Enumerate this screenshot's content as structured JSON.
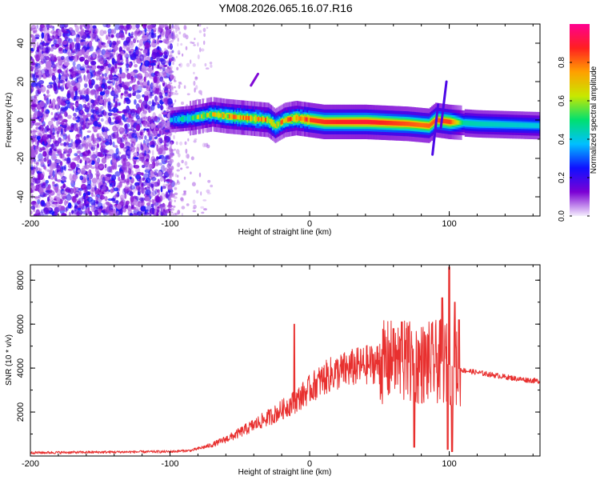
{
  "title": "YM08.2026.065.16.07.R16",
  "chart_data": [
    {
      "type": "heatmap",
      "name": "spectrogram",
      "xlabel": "Height of straight line (km)",
      "ylabel": "Frequency (Hz)",
      "xlim": [
        -200,
        165
      ],
      "ylim": [
        -50,
        50
      ],
      "xticks": [
        -200,
        -100,
        0,
        100
      ],
      "xtick_labels": [
        "-200",
        "-100",
        "0",
        "100"
      ],
      "yticks": [
        -40,
        -20,
        0,
        20,
        40
      ],
      "ytick_labels": [
        "-40",
        "-20",
        "0",
        "20",
        "40"
      ],
      "colorbar": {
        "label": "Normalized spectral amplitude",
        "range": [
          0,
          1
        ],
        "ticks": [
          0.0,
          0.2,
          0.4,
          0.6,
          0.8
        ],
        "tick_labels": [
          "0.0",
          "0.2",
          "0.4",
          "0.6",
          "0.8"
        ],
        "stops": [
          "#f4eefd",
          "#7b00d4",
          "#1010ff",
          "#00c0ff",
          "#00e070",
          "#c8e800",
          "#ffa000",
          "#ff2020",
          "#ff0090"
        ]
      },
      "noise_region_x": [
        -200,
        -100
      ],
      "band_center_hz": [
        {
          "x": -100,
          "f": 0
        },
        {
          "x": -85,
          "f": 1
        },
        {
          "x": -70,
          "f": 3
        },
        {
          "x": -60,
          "f": 2
        },
        {
          "x": -45,
          "f": 1
        },
        {
          "x": -30,
          "f": 0
        },
        {
          "x": -25,
          "f": -3
        },
        {
          "x": -18,
          "f": 0
        },
        {
          "x": -10,
          "f": 1
        },
        {
          "x": 0,
          "f": 0
        },
        {
          "x": 10,
          "f": -1
        },
        {
          "x": 40,
          "f": -1
        },
        {
          "x": 70,
          "f": -2
        },
        {
          "x": 85,
          "f": -3
        },
        {
          "x": 90,
          "f": 0
        },
        {
          "x": 100,
          "f": -1
        },
        {
          "x": 120,
          "f": -2
        },
        {
          "x": 165,
          "f": -3
        }
      ],
      "band_amplitude": [
        {
          "x": -100,
          "a": 0.35
        },
        {
          "x": -75,
          "a": 0.6
        },
        {
          "x": -45,
          "a": 0.75
        },
        {
          "x": -20,
          "a": 0.7
        },
        {
          "x": 0,
          "a": 0.85
        },
        {
          "x": 40,
          "a": 0.9
        },
        {
          "x": 80,
          "a": 0.8
        },
        {
          "x": 100,
          "a": 0.85
        },
        {
          "x": 110,
          "a": 0.45
        },
        {
          "x": 165,
          "a": 0.4
        }
      ]
    },
    {
      "type": "line",
      "name": "snr",
      "xlabel": "Height of straight line (km)",
      "ylabel": "SNR (10 * v/v)",
      "xlim": [
        -200,
        165
      ],
      "ylim": [
        0,
        8700
      ],
      "xticks": [
        -200,
        -100,
        0,
        100
      ],
      "xtick_labels": [
        "-200",
        "-100",
        "0",
        "100"
      ],
      "yticks": [
        2000,
        4000,
        6000,
        8000
      ],
      "ytick_labels": [
        "2000",
        "4000",
        "6000",
        "8000"
      ],
      "color": "#e8302f",
      "envelope": [
        {
          "x": -200,
          "y": 150
        },
        {
          "x": -100,
          "y": 200
        },
        {
          "x": -85,
          "y": 250
        },
        {
          "x": -70,
          "y": 500
        },
        {
          "x": -55,
          "y": 900
        },
        {
          "x": -40,
          "y": 1400
        },
        {
          "x": -25,
          "y": 1900
        },
        {
          "x": -10,
          "y": 2500
        },
        {
          "x": 5,
          "y": 3300
        },
        {
          "x": 15,
          "y": 3700
        },
        {
          "x": 30,
          "y": 4000
        },
        {
          "x": 45,
          "y": 4200
        },
        {
          "x": 60,
          "y": 4300
        },
        {
          "x": 80,
          "y": 4200
        },
        {
          "x": 95,
          "y": 4300
        },
        {
          "x": 105,
          "y": 4000
        },
        {
          "x": 110,
          "y": 3900
        },
        {
          "x": 130,
          "y": 3700
        },
        {
          "x": 150,
          "y": 3500
        },
        {
          "x": 165,
          "y": 3400
        }
      ],
      "spikes": [
        {
          "x": -11,
          "y": 6000
        },
        {
          "x": 60,
          "y": 5800
        },
        {
          "x": 66,
          "y": 6100
        },
        {
          "x": 71,
          "y": 5900
        },
        {
          "x": 75,
          "y": 400
        },
        {
          "x": 95,
          "y": 7200
        },
        {
          "x": 99,
          "y": 300
        },
        {
          "x": 100,
          "y": 8600
        },
        {
          "x": 102,
          "y": 200
        },
        {
          "x": 104,
          "y": 7000
        },
        {
          "x": 107,
          "y": 6200
        }
      ]
    }
  ]
}
